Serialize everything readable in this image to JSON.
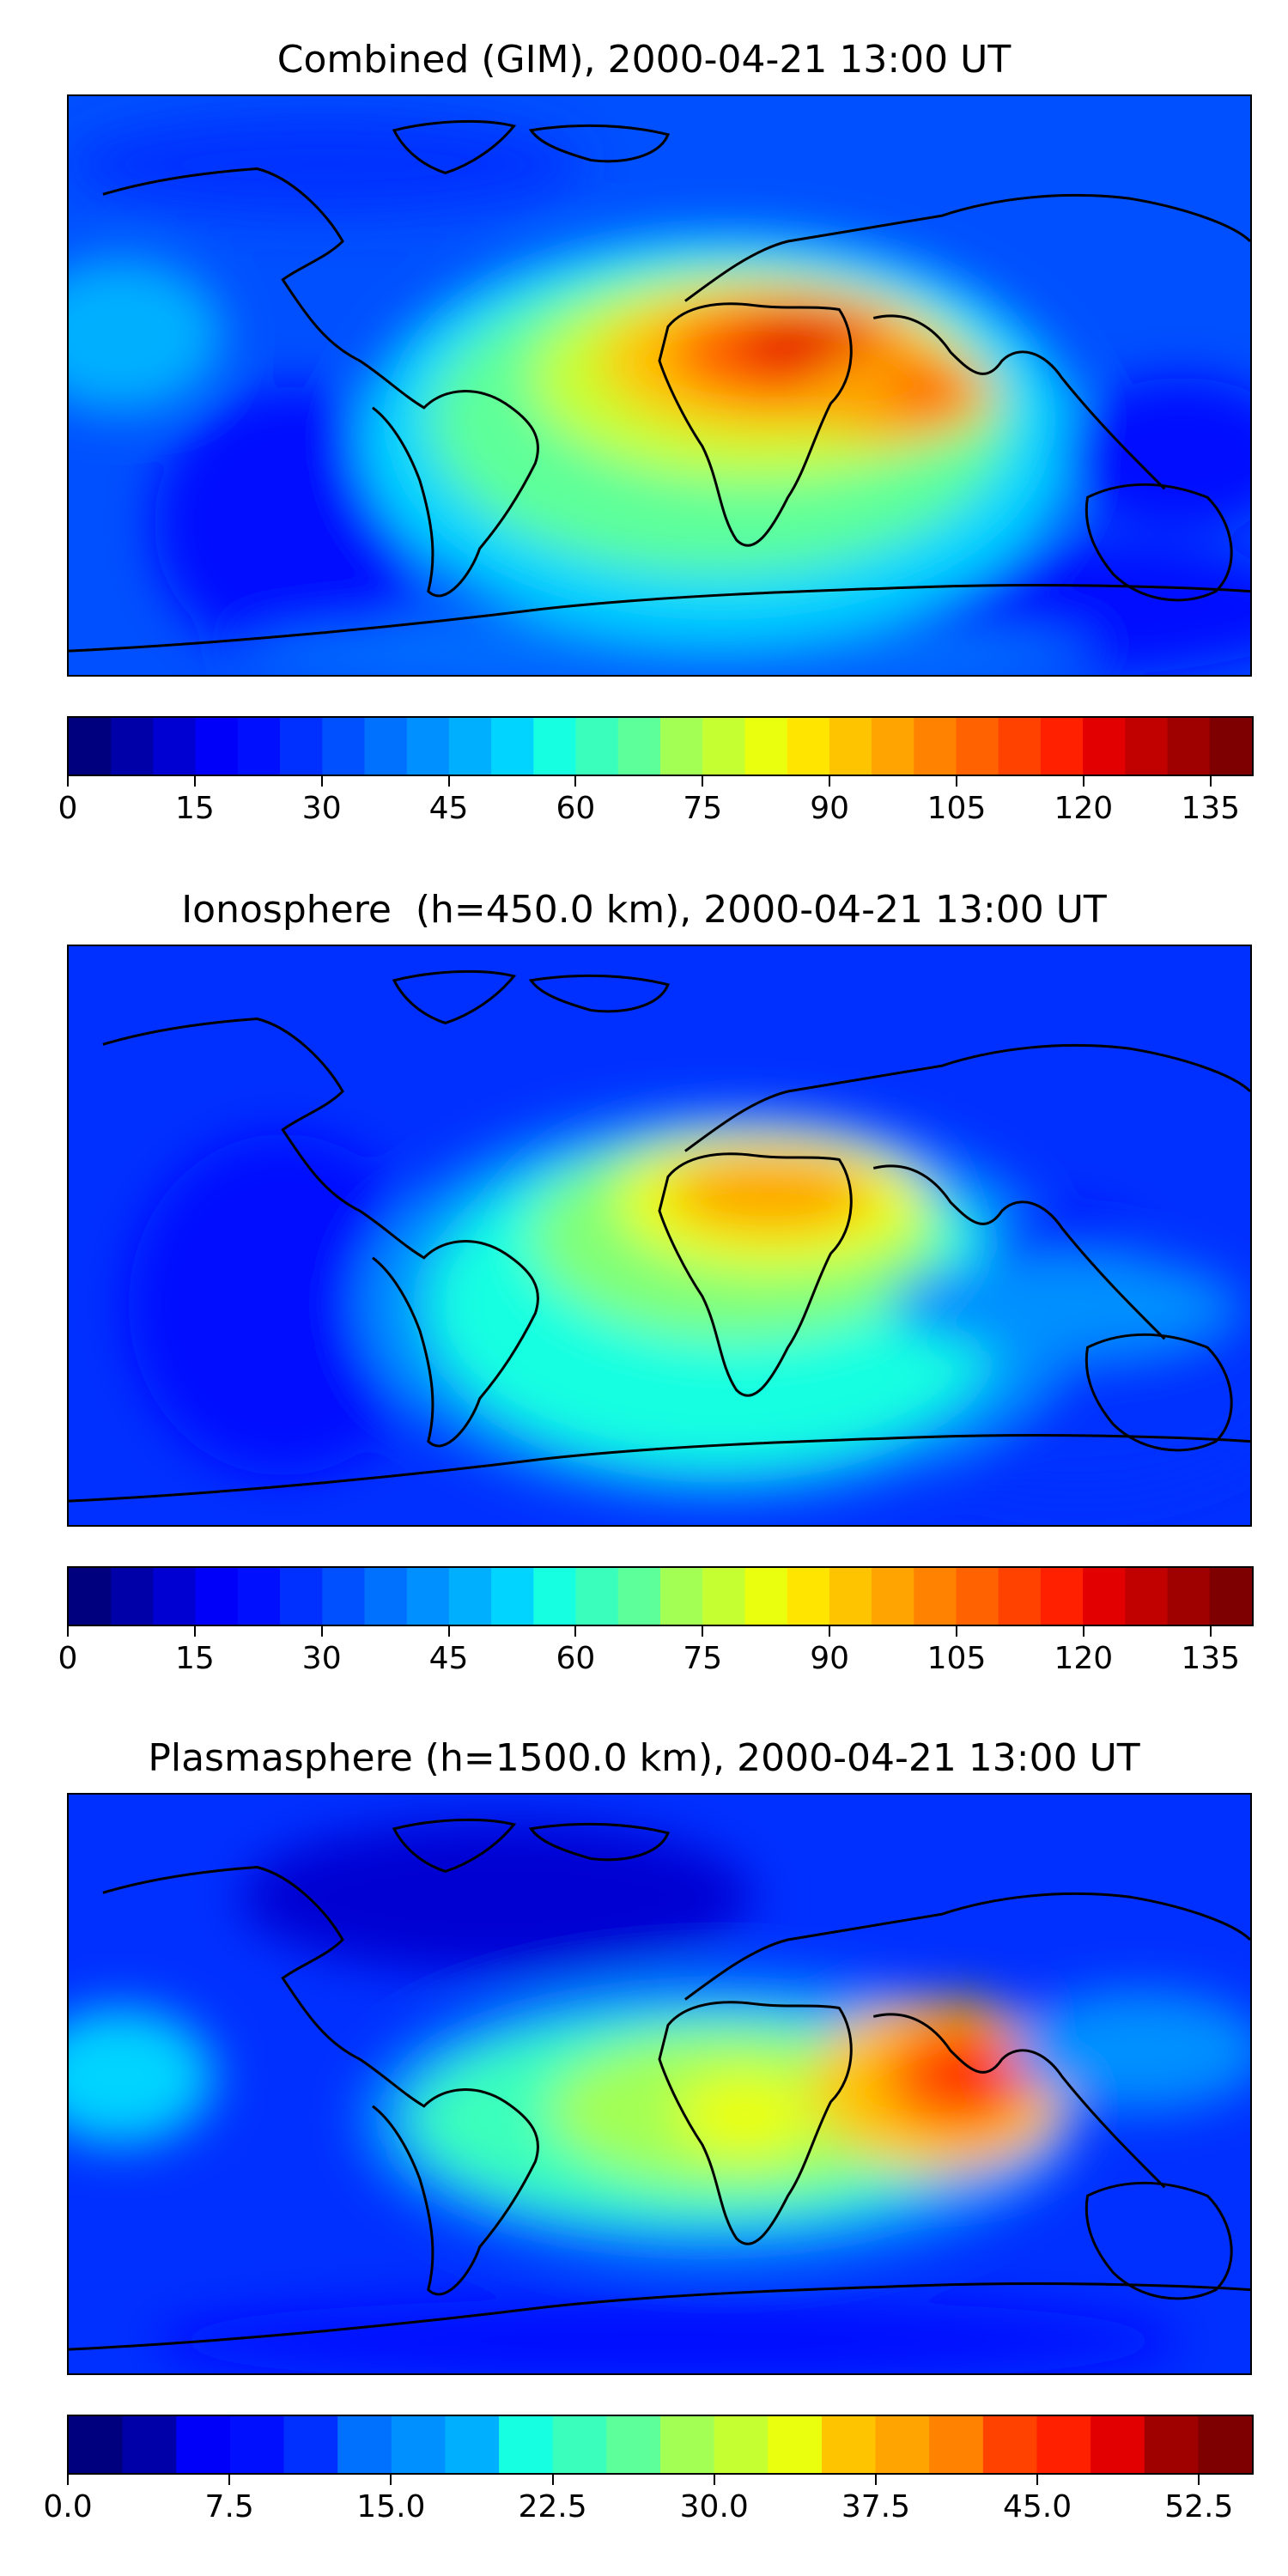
{
  "colormap": [
    "#00007f",
    "#0000a8",
    "#0000d2",
    "#0000fa",
    "#0010ff",
    "#0030ff",
    "#0050ff",
    "#0070ff",
    "#0090ff",
    "#00b0ff",
    "#00d4ff",
    "#16ffe1",
    "#3affbc",
    "#5dff9a",
    "#80ff77",
    "#a3ff54",
    "#c6ff31",
    "#eaff0d",
    "#ffe500",
    "#ffc400",
    "#ffa400",
    "#ff8300",
    "#ff6200",
    "#ff4200",
    "#ff2000",
    "#e30000",
    "#c10000",
    "#9f0000",
    "#7f0000"
  ],
  "panels": [
    {
      "title": "Combined (GIM), 2000-04-21 13:00 UT",
      "colorbar": {
        "min": 0,
        "max": 140,
        "levels": 28,
        "ticks": [
          {
            "value": 0,
            "label": "0"
          },
          {
            "value": 15,
            "label": "15"
          },
          {
            "value": 30,
            "label": "30"
          },
          {
            "value": 45,
            "label": "45"
          },
          {
            "value": 60,
            "label": "60"
          },
          {
            "value": 75,
            "label": "75"
          },
          {
            "value": 90,
            "label": "90"
          },
          {
            "value": 105,
            "label": "105"
          },
          {
            "value": 120,
            "label": "120"
          },
          {
            "value": 135,
            "label": "135"
          }
        ]
      }
    },
    {
      "title": "Ionosphere  (h=450.0 km), 2000-04-21 13:00 UT",
      "colorbar": {
        "min": 0,
        "max": 140,
        "levels": 28,
        "ticks": [
          {
            "value": 0,
            "label": "0"
          },
          {
            "value": 15,
            "label": "15"
          },
          {
            "value": 30,
            "label": "30"
          },
          {
            "value": 45,
            "label": "45"
          },
          {
            "value": 60,
            "label": "60"
          },
          {
            "value": 75,
            "label": "75"
          },
          {
            "value": 90,
            "label": "90"
          },
          {
            "value": 105,
            "label": "105"
          },
          {
            "value": 120,
            "label": "120"
          },
          {
            "value": 135,
            "label": "135"
          }
        ]
      }
    },
    {
      "title": "Plasmasphere (h=1500.0 km), 2000-04-21 13:00 UT",
      "colorbar": {
        "min": 0,
        "max": 55,
        "levels": 22,
        "ticks": [
          {
            "value": 0,
            "label": "0.0"
          },
          {
            "value": 7.5,
            "label": "7.5"
          },
          {
            "value": 15,
            "label": "15.0"
          },
          {
            "value": 22.5,
            "label": "22.5"
          },
          {
            "value": 30,
            "label": "30.0"
          },
          {
            "value": 37.5,
            "label": "37.5"
          },
          {
            "value": 45,
            "label": "45.0"
          },
          {
            "value": 52.5,
            "label": "52.5"
          }
        ]
      }
    }
  ]
}
